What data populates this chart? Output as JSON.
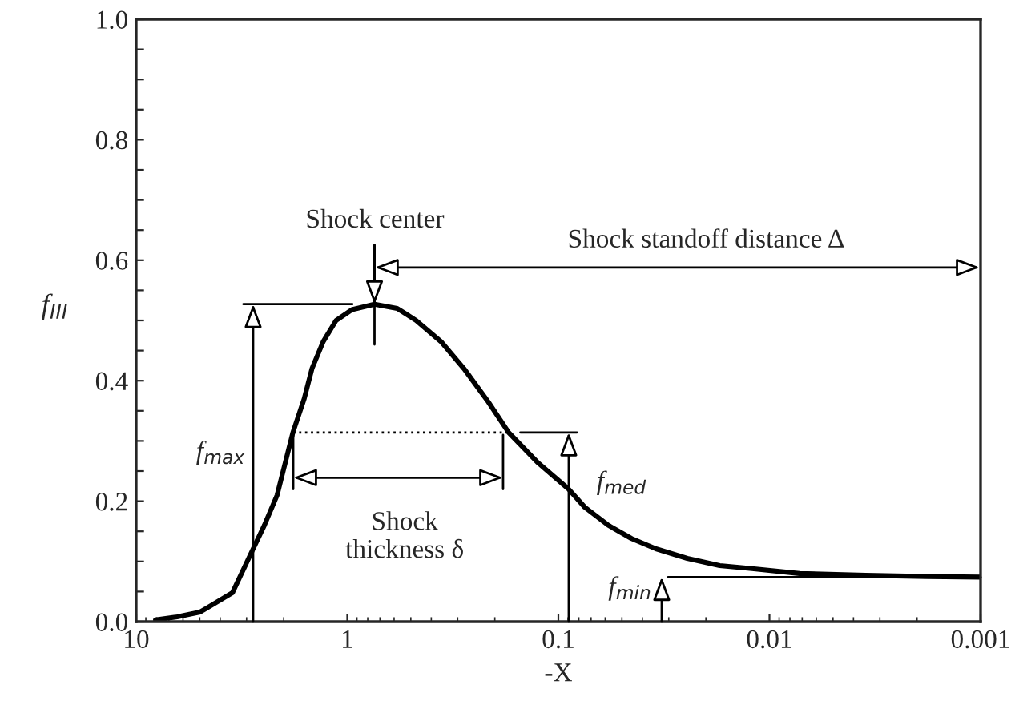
{
  "chart_data": {
    "type": "line",
    "xlabel": "-X",
    "ylabel": "f$_{III}$",
    "log": "x",
    "xlim": [
      10,
      0.001
    ],
    "xticks": [
      10,
      1,
      0.1,
      0.01,
      0.001
    ],
    "ylim": [
      0,
      1.0
    ],
    "yticks": [
      {
        "value": 0,
        "label": "0.0"
      },
      {
        "value": 0.05,
        "label": null
      },
      {
        "value": 0.1,
        "label": null
      },
      {
        "value": 0.15,
        "label": null
      },
      {
        "value": 0.2,
        "label": "0.2"
      },
      {
        "value": 0.25,
        "label": null
      },
      {
        "value": 0.3,
        "label": null
      },
      {
        "value": 0.35,
        "label": null
      },
      {
        "value": 0.4,
        "label": "0.4"
      },
      {
        "value": 0.45,
        "label": null
      },
      {
        "value": 0.5,
        "label": null
      },
      {
        "value": 0.55,
        "label": null
      },
      {
        "value": 0.6,
        "label": "0.6"
      },
      {
        "value": 0.65,
        "label": null
      },
      {
        "value": 0.7,
        "label": null
      },
      {
        "value": 0.75,
        "label": null
      },
      {
        "value": 0.8,
        "label": "0.8"
      },
      {
        "value": 0.85,
        "label": null
      },
      {
        "value": 0.9,
        "label": null
      },
      {
        "value": 0.95,
        "label": null
      },
      {
        "value": 1.0,
        "label": "1.0"
      }
    ],
    "grid": false,
    "legend": false,
    "series": [
      {
        "color": "#000000",
        "x": [
          8.1,
          6.4,
          4.98,
          3.5,
          2.8,
          2.47,
          2.15,
          1.81,
          1.6,
          1.47,
          1.3,
          1.13,
          0.95,
          0.743,
          0.58,
          0.472,
          0.36,
          0.28,
          0.215,
          0.172,
          0.126,
          0.09,
          0.075,
          0.058,
          0.045,
          0.0345,
          0.0245,
          0.0172,
          0.0121,
          0.0072,
          0.0035,
          0.0018,
          0.001
        ],
        "values": [
          0.003,
          0.008,
          0.016,
          0.048,
          0.12,
          0.16,
          0.21,
          0.314,
          0.37,
          0.42,
          0.465,
          0.5,
          0.518,
          0.527,
          0.52,
          0.5,
          0.465,
          0.42,
          0.365,
          0.314,
          0.265,
          0.221,
          0.19,
          0.16,
          0.138,
          0.121,
          0.105,
          0.093,
          0.088,
          0.08,
          0.077,
          0.075,
          0.074
        ]
      }
    ],
    "annotations": [
      {
        "text": "Shock center",
        "x": 0.743,
        "y": 0.527
      },
      "Shock standoff distance Δ",
      "Shock\nthickness δ",
      "f$_{max}$",
      "f$_{med}$",
      "f$_{min}$"
    ]
  }
}
